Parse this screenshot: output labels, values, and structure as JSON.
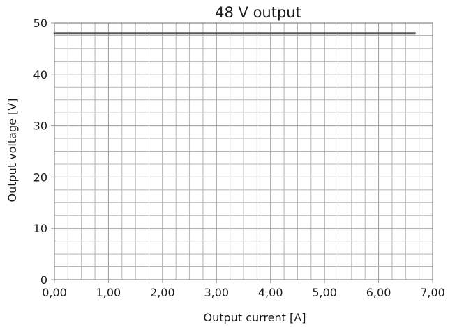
{
  "chart_data": {
    "type": "line",
    "title": "48 V output",
    "xlabel": "Output current [A]",
    "ylabel": "Output voltage [V]",
    "xlim": [
      0,
      7
    ],
    "ylim": [
      0,
      50
    ],
    "x_ticks": [
      "0,00",
      "1,00",
      "2,00",
      "3,00",
      "4,00",
      "5,00",
      "6,00",
      "7,00"
    ],
    "y_ticks": [
      "0",
      "10",
      "20",
      "30",
      "40",
      "50"
    ],
    "x_tick_values": [
      0,
      1,
      2,
      3,
      4,
      5,
      6,
      7
    ],
    "y_tick_values": [
      0,
      10,
      20,
      30,
      40,
      50
    ],
    "x_minor_step": 0.25,
    "y_minor_step": 2.5,
    "grid": true,
    "series": [
      {
        "x": [
          0,
          6.67
        ],
        "y": [
          48,
          48
        ],
        "color": "#595959"
      }
    ]
  }
}
